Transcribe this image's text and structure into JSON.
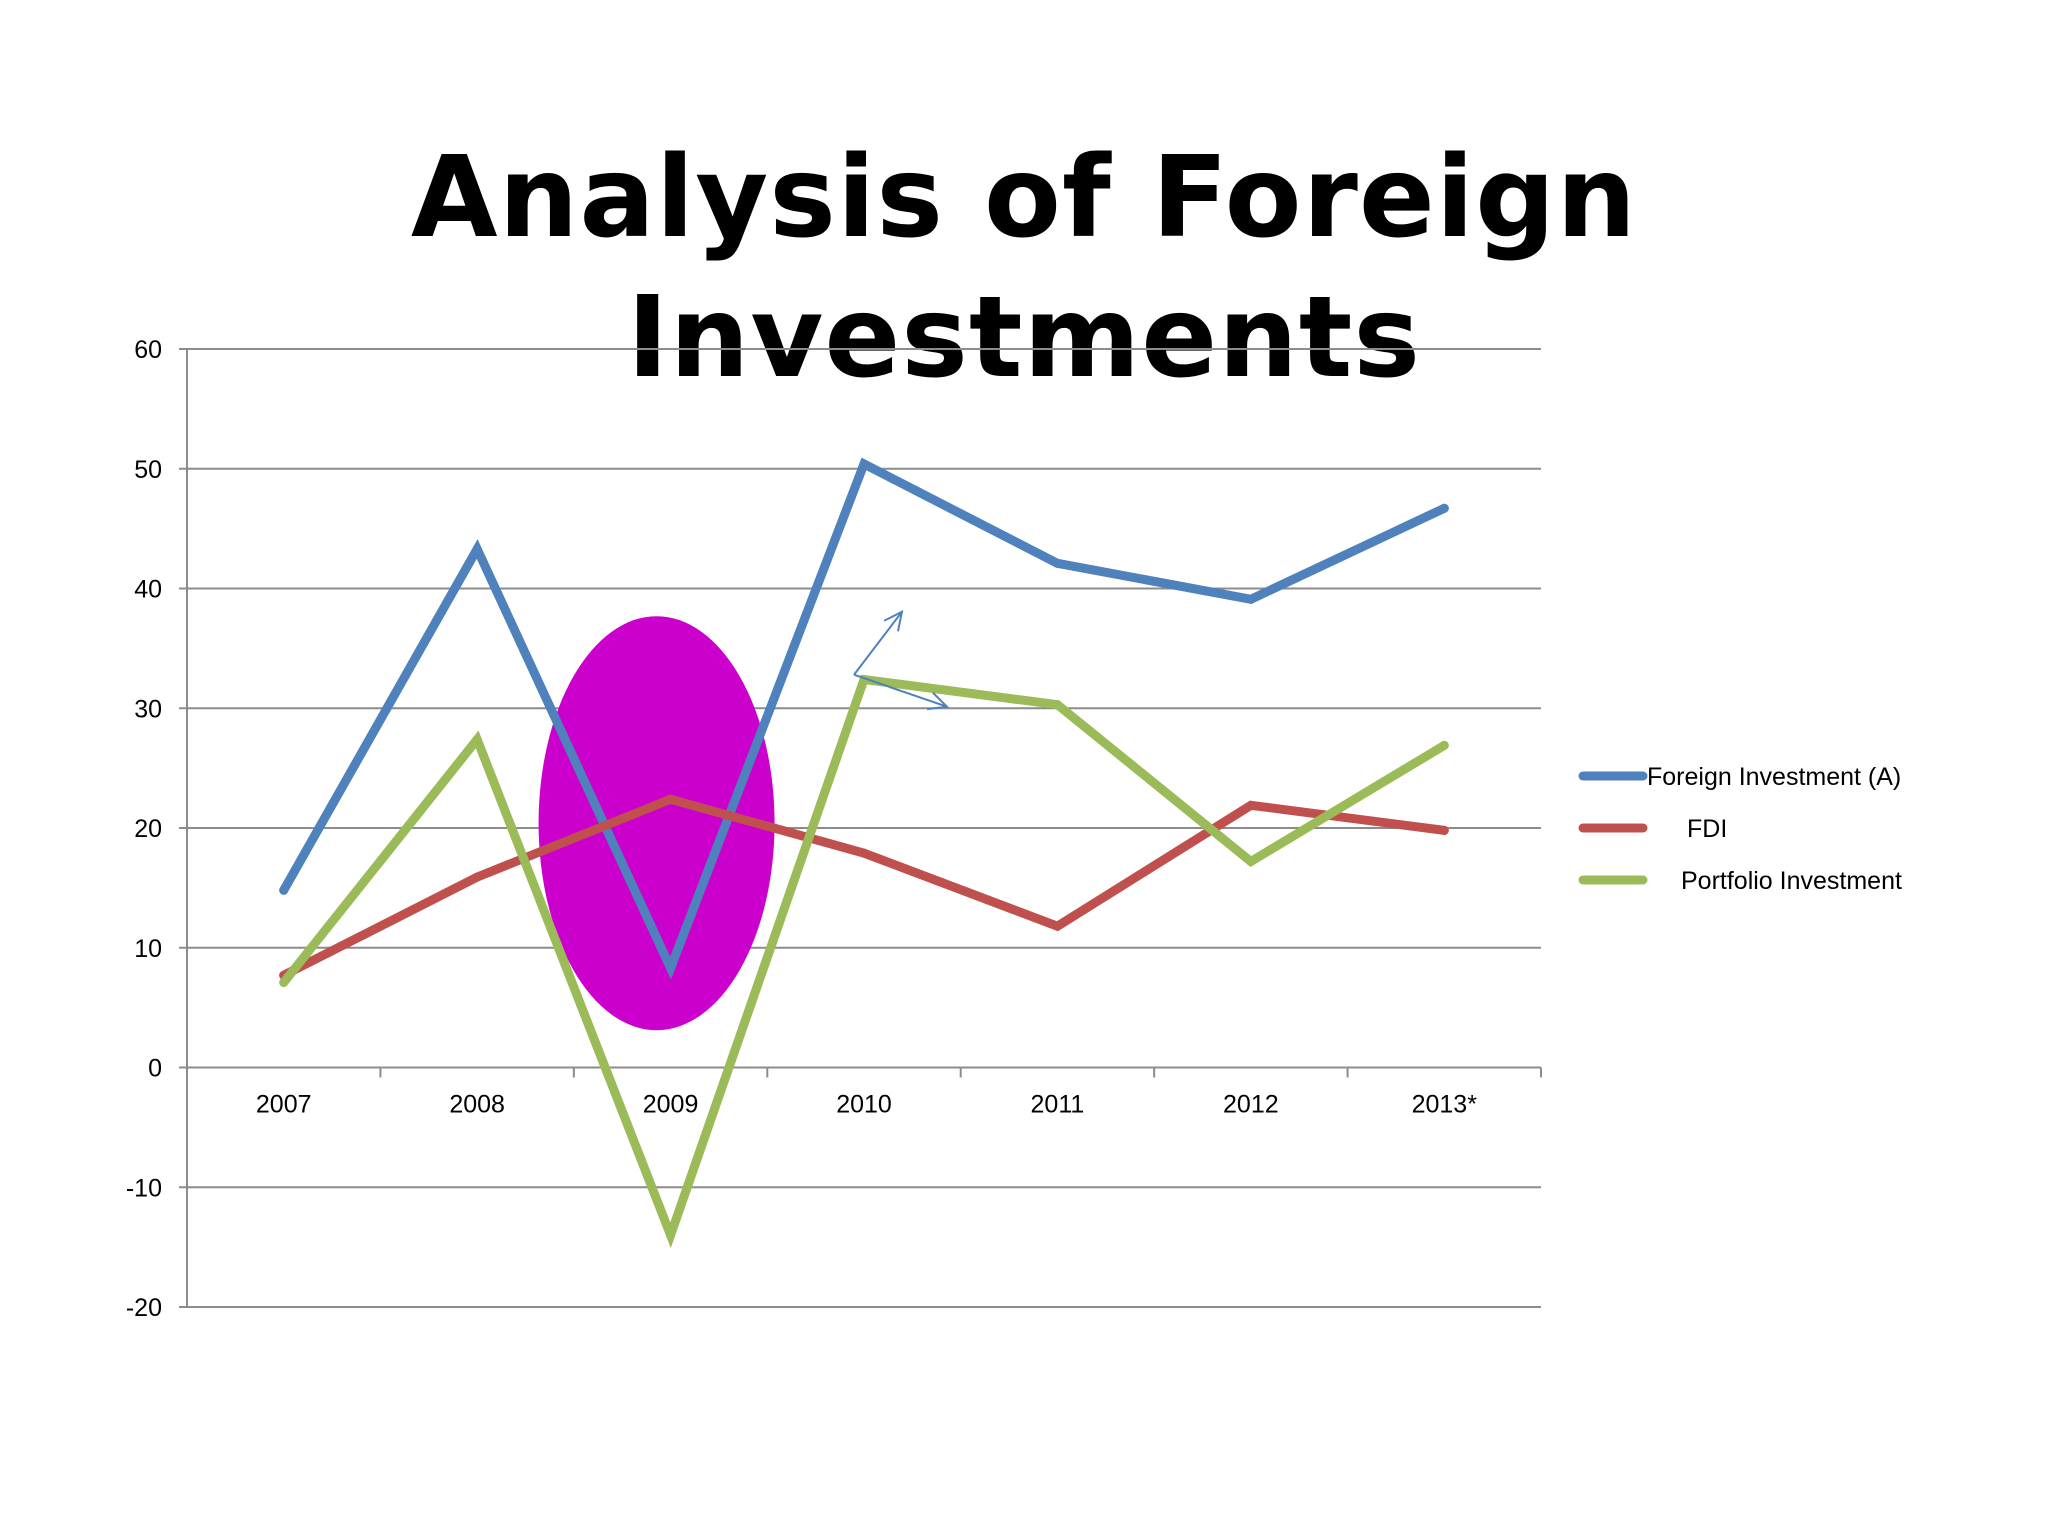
{
  "slide": {
    "title": "Analysis of Foreign Investments"
  },
  "chart_data": {
    "type": "line",
    "title": "",
    "xlabel": "",
    "ylabel": "",
    "categories": [
      "2007",
      "2008",
      "2009",
      "2010",
      "2011",
      "2012",
      "2013*"
    ],
    "ylim": [
      -20,
      60
    ],
    "yticks": [
      60,
      50,
      40,
      30,
      20,
      10,
      0,
      -10,
      -20
    ],
    "grid": true,
    "legend_position": "right",
    "series": [
      {
        "name": "Foreign Investment (A)",
        "color": "#4f81bd",
        "values": [
          14.8,
          43.3,
          8.3,
          50.4,
          42.1,
          39.1,
          46.7
        ]
      },
      {
        "name": "FDI",
        "color": "#c0504d",
        "values": [
          7.7,
          15.9,
          22.4,
          17.9,
          11.8,
          21.9,
          19.8
        ]
      },
      {
        "name": "Portfolio Investment",
        "color": "#9bbb59",
        "values": [
          7.1,
          27.4,
          -14.0,
          32.4,
          30.3,
          17.2,
          26.9
        ]
      }
    ],
    "annotations": {
      "highlight_ellipse": {
        "category": "2009",
        "color": "#cc00cc"
      },
      "arrow_color": "#4f81bd"
    }
  }
}
